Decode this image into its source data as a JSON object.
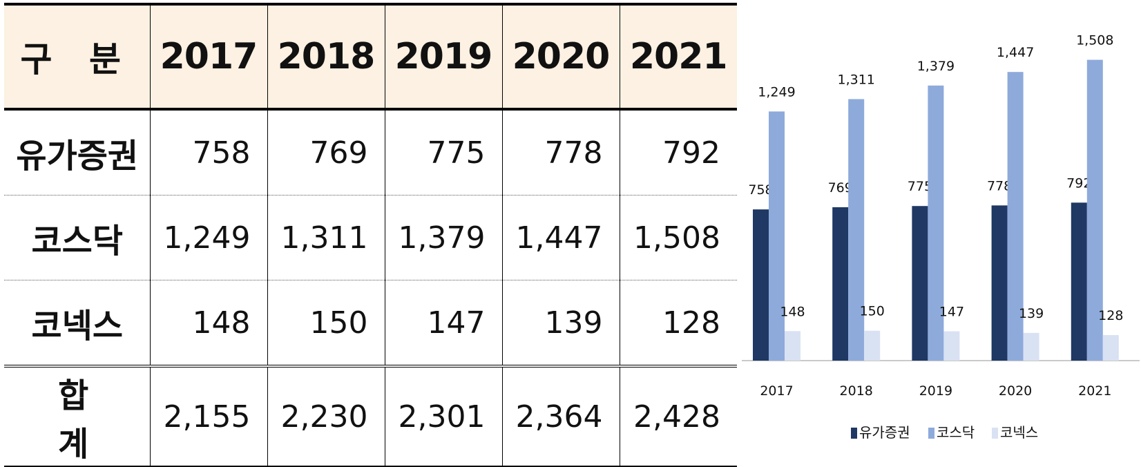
{
  "table": {
    "header": [
      "구 분",
      "2017",
      "2018",
      "2019",
      "2020",
      "2021"
    ],
    "rows": [
      {
        "label": "유가증권",
        "values": [
          "758",
          "769",
          "775",
          "778",
          "792"
        ]
      },
      {
        "label": "코스닥",
        "values": [
          "1,249",
          "1,311",
          "1,379",
          "1,447",
          "1,508"
        ]
      },
      {
        "label": "코넥스",
        "values": [
          "148",
          "150",
          "147",
          "139",
          "128"
        ]
      },
      {
        "label": "합 계",
        "values": [
          "2,155",
          "2,230",
          "2,301",
          "2,364",
          "2,428"
        ]
      }
    ]
  },
  "chart_data": {
    "type": "bar",
    "categories": [
      "2017",
      "2018",
      "2019",
      "2020",
      "2021"
    ],
    "series": [
      {
        "name": "유가증권",
        "color": "#1f3864",
        "values": [
          758,
          769,
          775,
          778,
          792
        ],
        "labels": [
          "758",
          "769",
          "775",
          "778",
          "792"
        ]
      },
      {
        "name": "코스닥",
        "color": "#8eaadb",
        "values": [
          1249,
          1311,
          1379,
          1447,
          1508
        ],
        "labels": [
          "1,249",
          "1,311",
          "1,379",
          "1,447",
          "1,508"
        ]
      },
      {
        "name": "코넥스",
        "color": "#d9e2f3",
        "values": [
          148,
          150,
          147,
          139,
          128
        ],
        "labels": [
          "148",
          "150",
          "147",
          "139",
          "128"
        ]
      }
    ],
    "title": "",
    "xlabel": "",
    "ylabel": "",
    "ylim": [
      0,
      1600
    ],
    "grid": false,
    "legend": "bottom"
  }
}
